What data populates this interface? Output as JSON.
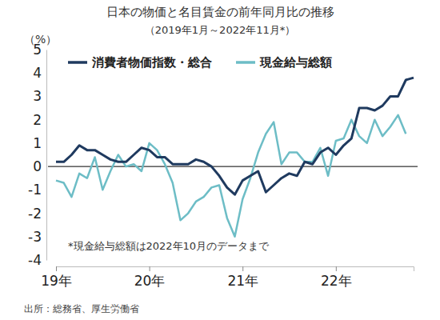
{
  "chart_data": {
    "type": "line",
    "title": "日本の物価と名目賃金の前年同月比の推移",
    "subtitle": "（2019年1月～2022年11月*）",
    "y_label": "（%）",
    "annotation": "*現金給与総額は2022年10月のデータまで",
    "source": "出所：総務省、厚生労働省",
    "categories": [
      "19年",
      null,
      null,
      null,
      null,
      null,
      null,
      null,
      null,
      null,
      null,
      null,
      "20年",
      null,
      null,
      null,
      null,
      null,
      null,
      null,
      null,
      null,
      null,
      null,
      "21年",
      null,
      null,
      null,
      null,
      null,
      null,
      null,
      null,
      null,
      null,
      null,
      "22年",
      null,
      null,
      null,
      null,
      null,
      null,
      null,
      null,
      null,
      null
    ],
    "series": [
      {
        "name": "消費者物価指数・総合",
        "color": "#1f3a5f",
        "values": [
          0.2,
          0.2,
          0.5,
          0.9,
          0.7,
          0.7,
          0.5,
          0.3,
          0.2,
          0.2,
          0.5,
          0.8,
          0.7,
          0.4,
          0.4,
          0.1,
          0.1,
          0.1,
          0.3,
          0.2,
          0.0,
          -0.4,
          -0.9,
          -1.2,
          -0.6,
          -0.4,
          -0.2,
          -1.1,
          -0.8,
          -0.5,
          -0.3,
          -0.4,
          0.2,
          0.1,
          0.6,
          0.8,
          0.5,
          0.9,
          1.2,
          2.5,
          2.5,
          2.4,
          2.6,
          3.0,
          3.0,
          3.7,
          3.8
        ]
      },
      {
        "name": "現金給与総額",
        "color": "#6dbdc6",
        "values": [
          -0.6,
          -0.7,
          -1.3,
          -0.3,
          -0.5,
          0.4,
          -1.0,
          -0.2,
          0.5,
          0.0,
          0.1,
          -0.2,
          1.0,
          0.7,
          0.1,
          -0.7,
          -2.3,
          -2.0,
          -1.5,
          -1.3,
          -0.9,
          -0.8,
          -2.2,
          -3.0,
          -1.4,
          -0.5,
          0.6,
          1.4,
          1.9,
          0.1,
          0.6,
          0.6,
          0.2,
          0.2,
          0.8,
          -0.4,
          1.1,
          1.2,
          2.0,
          1.3,
          1.0,
          2.0,
          1.3,
          1.7,
          2.2,
          1.4,
          null
        ]
      }
    ],
    "ylim": [
      -4,
      5
    ],
    "yticks": [
      -4,
      -3,
      -2,
      -1,
      0,
      1,
      2,
      3,
      4,
      5
    ],
    "grid": false,
    "legend": "top"
  }
}
